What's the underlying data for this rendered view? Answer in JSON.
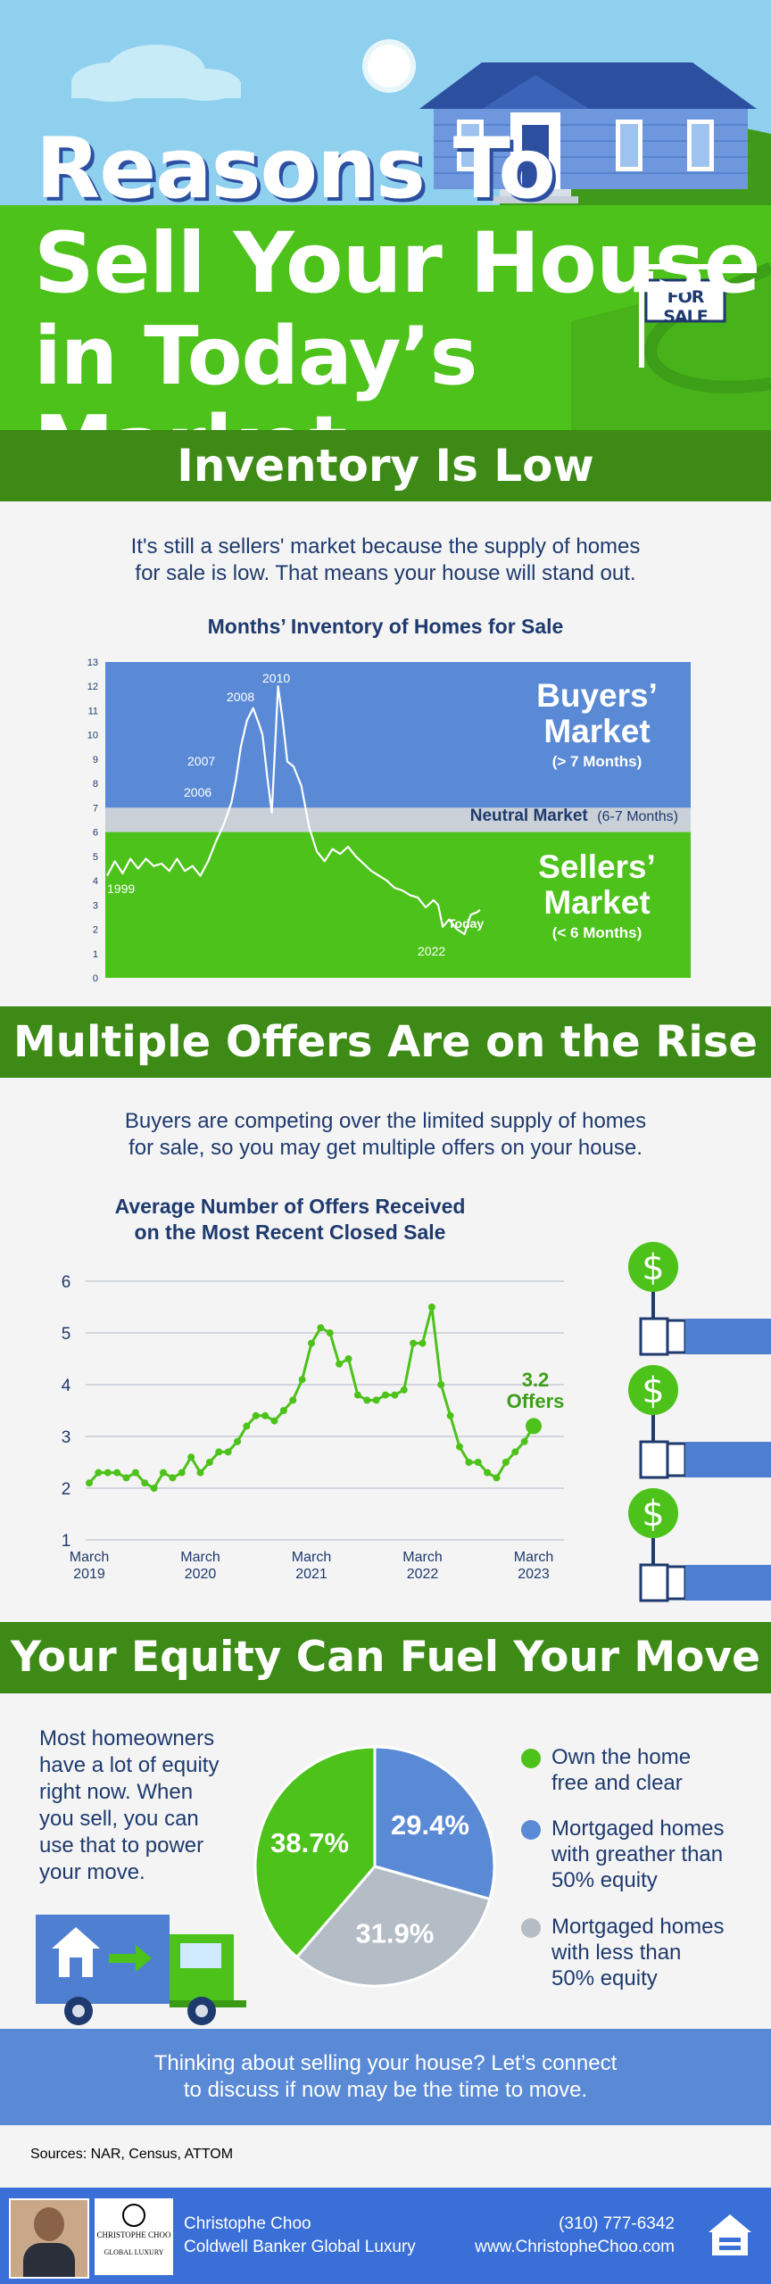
{
  "header": {
    "title_line1": "Reasons To",
    "title_line2": "Sell Your House",
    "title_line3": "in Today’s Market",
    "sign_text": "FOR SALE"
  },
  "section1": {
    "heading": "Inventory Is Low",
    "intro_line1": "It's still a sellers' market because the supply of homes",
    "intro_line2": "for sale is low. That means your house will stand out."
  },
  "section2": {
    "heading": "Multiple Offers Are on the Rise",
    "intro_line1": "Buyers are competing over the limited supply of homes",
    "intro_line2": "for sale, so you may get multiple offers on your house."
  },
  "section3": {
    "heading": "Your Equity Can Fuel Your Move",
    "text_lines": [
      "Most homeowners",
      "have a lot of equity",
      "right now. When",
      "you sell, you can",
      "use that to power",
      "your move."
    ]
  },
  "cta": {
    "line1": "Thinking about selling your house? Let’s connect",
    "line2": "to discuss if now may be the time to move."
  },
  "sources": "Sources: NAR, Census, ATTOM",
  "footer": {
    "name": "Christophe Choo",
    "company": "Coldwell Banker Global Luxury",
    "phone": "(310) 777-6342",
    "website": "www.ChristopheChoo.com",
    "logo_text": "CHRISTOPHE CHOO",
    "logo_sub": "GLOBAL LUXURY"
  },
  "colors": {
    "green": "#4cc21a",
    "dark_green": "#3d8a16",
    "blue": "#5a8ad6",
    "navy": "#1e3a6e",
    "grey": "#b4bcc6"
  },
  "chart_data": [
    {
      "type": "line",
      "title": "Months’ Inventory of Homes for Sale",
      "ylim": [
        0,
        13
      ],
      "y_ticks": [
        "0",
        "1",
        "2",
        "3",
        "4",
        "5",
        "6",
        "7",
        "8",
        "9",
        "10",
        "11",
        "12",
        "13"
      ],
      "zones": {
        "buyers_title": "Buyers’",
        "buyers_title2": "Market",
        "buyers_sub": "(> 7 Months)",
        "neutral_title": "Neutral Market",
        "neutral_sub": "(6-7 Months)",
        "sellers_title": "Sellers’",
        "sellers_title2": "Market",
        "sellers_sub": "(< 6 Months)"
      },
      "labels": {
        "y1999": "1999",
        "y2006": "2006",
        "y2007": "2007",
        "y2008": "2008",
        "y2010": "2010",
        "y2022": "2022",
        "today": "Today"
      },
      "series": [
        {
          "x": [
            1999,
            1999.5,
            2000,
            2000.5,
            2001,
            2001.5,
            2002,
            2002.5,
            2003,
            2003.5,
            2004,
            2004.5,
            2005,
            2005.5,
            2006,
            2006.5,
            2007,
            2007.3,
            2007.6,
            2008,
            2008.4,
            2008.8,
            2009,
            2009.3,
            2009.6,
            2010,
            2010.3,
            2010.6,
            2011,
            2011.5,
            2012,
            2012.5,
            2013,
            2013.5,
            2014,
            2014.5,
            2015,
            2015.5,
            2016,
            2016.5,
            2017,
            2017.5,
            2018,
            2018.5,
            2019,
            2019.5,
            2020,
            2020.3,
            2020.6,
            2021,
            2021.5,
            2022,
            2022.4,
            2022.8,
            2023
          ],
          "values": [
            4.2,
            4.8,
            4.3,
            4.9,
            4.5,
            4.9,
            4.6,
            4.7,
            4.4,
            4.9,
            4.4,
            4.6,
            4.2,
            4.8,
            5.6,
            6.3,
            7.2,
            8.2,
            9.5,
            10.6,
            11.1,
            10.4,
            10.0,
            8.3,
            6.8,
            12.0,
            10.6,
            8.9,
            8.7,
            7.9,
            6.2,
            5.2,
            4.8,
            5.3,
            5.1,
            5.4,
            5.0,
            4.7,
            4.4,
            4.2,
            4.0,
            3.7,
            3.6,
            3.4,
            3.3,
            2.9,
            3.2,
            3.0,
            2.1,
            2.4,
            2.0,
            1.8,
            2.6,
            2.7,
            2.8
          ]
        }
      ]
    },
    {
      "type": "line",
      "title_line1": "Average Number of Offers Received",
      "title_line2": "on the Most Recent Closed Sale",
      "ylim": [
        1,
        6
      ],
      "y_ticks": [
        "1",
        "2",
        "3",
        "4",
        "5",
        "6"
      ],
      "x_tick_labels": [
        [
          "March",
          "2019"
        ],
        [
          "March",
          "2020"
        ],
        [
          "March",
          "2021"
        ],
        [
          "March",
          "2022"
        ],
        [
          "March",
          "2023"
        ]
      ],
      "end_label_value": "3.2",
      "end_label_unit": "Offers",
      "series": [
        {
          "x": [
            0,
            1,
            2,
            3,
            4,
            5,
            6,
            7,
            8,
            9,
            10,
            11,
            12,
            13,
            14,
            15,
            16,
            17,
            18,
            19,
            20,
            21,
            22,
            23,
            24,
            25,
            26,
            27,
            28,
            29,
            30,
            31,
            32,
            33,
            34,
            35,
            36,
            37,
            38,
            39,
            40,
            41,
            42,
            43,
            44,
            45,
            46,
            47,
            48
          ],
          "values": [
            2.1,
            2.3,
            2.3,
            2.3,
            2.2,
            2.3,
            2.1,
            2.0,
            2.3,
            2.2,
            2.3,
            2.6,
            2.3,
            2.5,
            2.7,
            2.7,
            2.9,
            3.2,
            3.4,
            3.4,
            3.3,
            3.5,
            3.7,
            4.1,
            4.8,
            5.1,
            5.0,
            4.4,
            4.5,
            3.8,
            3.7,
            3.7,
            3.8,
            3.8,
            3.9,
            4.8,
            4.8,
            5.5,
            4.0,
            3.4,
            2.8,
            2.5,
            2.5,
            2.3,
            2.2,
            2.5,
            2.7,
            2.9,
            3.2
          ]
        }
      ]
    },
    {
      "type": "pie",
      "labels": [
        "Own the home free and clear",
        "Mortgaged homes with greather than 50% equity",
        "Mortgaged homes with less than 50% equity"
      ],
      "legend_lines": [
        [
          "Own the home",
          "free and clear"
        ],
        [
          "Mortgaged homes",
          "with greather than",
          "50% equity"
        ],
        [
          "Mortgaged homes",
          "with less than",
          "50% equity"
        ]
      ],
      "values": [
        38.7,
        29.4,
        31.9
      ],
      "display": [
        "38.7%",
        "29.4%",
        "31.9%"
      ],
      "colors": [
        "#4cc21a",
        "#5a8ad6",
        "#b4bcc6"
      ]
    }
  ]
}
